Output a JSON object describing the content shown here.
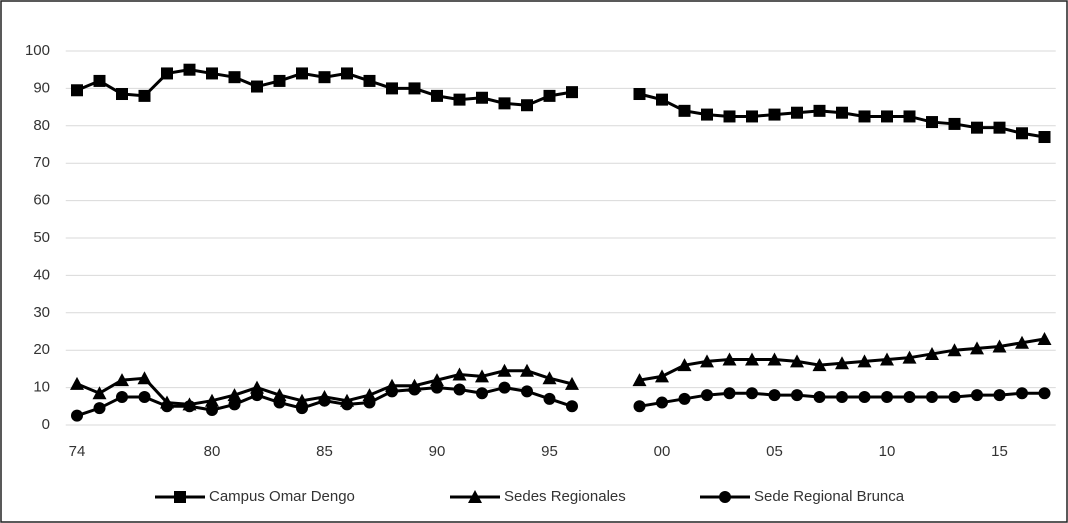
{
  "chart_data": {
    "type": "line",
    "categories": [
      "74",
      null,
      null,
      null,
      null,
      null,
      "80",
      null,
      null,
      null,
      null,
      "85",
      null,
      null,
      null,
      null,
      "90",
      null,
      null,
      null,
      null,
      "95",
      null,
      null,
      null,
      null,
      "00",
      null,
      null,
      null,
      null,
      "05",
      null,
      null,
      null,
      null,
      "10",
      null,
      null,
      null,
      null,
      "15",
      null,
      null
    ],
    "series": [
      {
        "name": "Campus Omar Dengo",
        "color": "#000000",
        "marker": "square",
        "values": [
          89.5,
          92,
          88.5,
          88,
          94,
          95,
          94,
          93,
          90.5,
          92,
          94,
          93,
          94,
          92,
          90,
          90,
          88,
          87,
          87.5,
          86,
          85.5,
          88,
          89,
          null,
          null,
          88.5,
          87,
          84,
          83,
          82.5,
          82.5,
          83,
          83.5,
          84,
          83.5,
          82.5,
          82.5,
          82.5,
          81,
          80.5,
          79.5,
          79.5,
          78,
          77
        ]
      },
      {
        "name": "Sedes Regionales",
        "color": "#000000",
        "marker": "triangle",
        "values": [
          11,
          8.5,
          12,
          12.5,
          6,
          5.5,
          6.5,
          8,
          10,
          8,
          6.5,
          7.5,
          6.5,
          8,
          10.5,
          10.5,
          12,
          13.5,
          13,
          14.5,
          14.5,
          12.5,
          11,
          null,
          null,
          12,
          13,
          16,
          17,
          17.5,
          17.5,
          17.5,
          17,
          16,
          16.5,
          17,
          17.5,
          18,
          19,
          20,
          20.5,
          21,
          22,
          23
        ]
      },
      {
        "name": "Sede Regional Brunca",
        "color": "#000000",
        "marker": "circle",
        "values": [
          2.5,
          4.5,
          7.5,
          7.5,
          5,
          5,
          4,
          5.5,
          8,
          6,
          4.5,
          6.5,
          5.5,
          6,
          9,
          9.5,
          10,
          9.5,
          8.5,
          10,
          9,
          7,
          5,
          null,
          null,
          5,
          6,
          7,
          8,
          8.5,
          8.5,
          8,
          8,
          7.5,
          7.5,
          7.5,
          7.5,
          7.5,
          7.5,
          7.5,
          8,
          8,
          8.5,
          8.5
        ]
      }
    ],
    "ylim": [
      0,
      100
    ],
    "yticks": [
      0,
      10,
      20,
      30,
      40,
      50,
      60,
      70,
      80,
      90,
      100
    ],
    "grid": true,
    "legend": "bottom"
  }
}
